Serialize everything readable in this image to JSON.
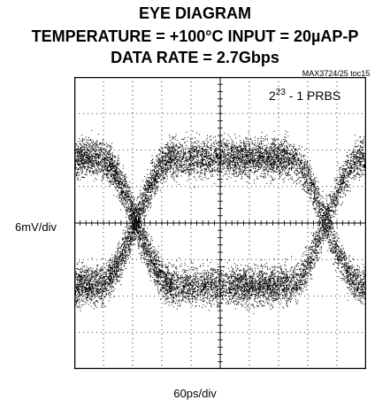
{
  "chart_data": {
    "type": "scatter",
    "title": "EYE DIAGRAM",
    "subtitle_line1": "TEMPERATURE = +100°C INPUT = 20µAP-P",
    "subtitle_line2": "DATA RATE = 2.7Gbps",
    "figure_code": "MAX3724/25 toc15",
    "xlabel": "60ps/div",
    "ylabel": "6mV/div",
    "annotation": {
      "base": "2",
      "exponent": "23",
      "rest": " - 1 PRBS"
    },
    "x_divisions": 10,
    "y_divisions": 8,
    "xlim": [
      0,
      10
    ],
    "ylim": [
      -4,
      4
    ],
    "grid": true,
    "eye": {
      "crossing_points_div": [
        2.1,
        8.6
      ],
      "high_level_div": 1.8,
      "low_level_div": -1.7,
      "band_halfwidth_div": 0.8
    },
    "colors": {
      "trace": "#000000",
      "background": "#ffffff",
      "grid": "#000000"
    }
  }
}
